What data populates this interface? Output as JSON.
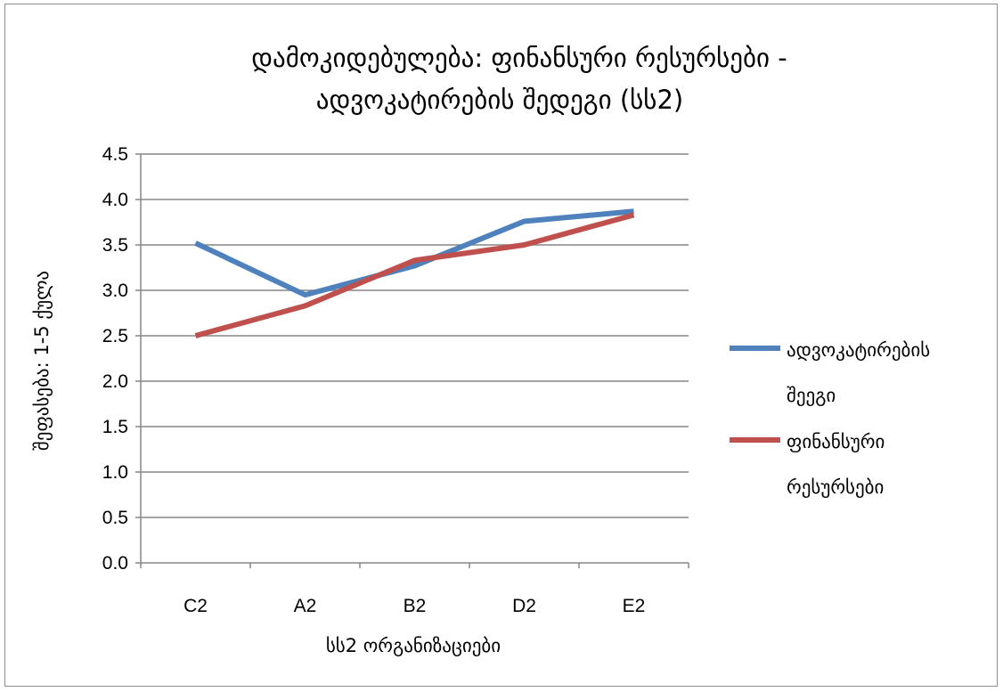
{
  "chart_data": {
    "type": "line",
    "title_line1": "დამოკიდებულება: ფინანსური რესურსები -",
    "title_line2": "ადვოკატირების შედეგი (სს2)",
    "xlabel": "სს2 ორგანიზაციები",
    "ylabel": "შეფასება: 1-5 ქულა",
    "categories": [
      "C2",
      "A2",
      "B2",
      "D2",
      "E2"
    ],
    "ylim": [
      0,
      4.5
    ],
    "yticks": [
      "0.0",
      "0.5",
      "1.0",
      "1.5",
      "2.0",
      "2.5",
      "3.0",
      "3.5",
      "4.0",
      "4.5"
    ],
    "grid": true,
    "legend_position": "right",
    "series": [
      {
        "name_line1": "ადვოკატირების",
        "name_line2": "შეეგი",
        "color": "#4f81bd",
        "values": [
          3.52,
          2.95,
          3.27,
          3.76,
          3.87
        ]
      },
      {
        "name_line1": "ფინანსური",
        "name_line2": "რესურსები",
        "color": "#c0504d",
        "values": [
          2.5,
          2.83,
          3.33,
          3.5,
          3.83
        ]
      }
    ]
  }
}
